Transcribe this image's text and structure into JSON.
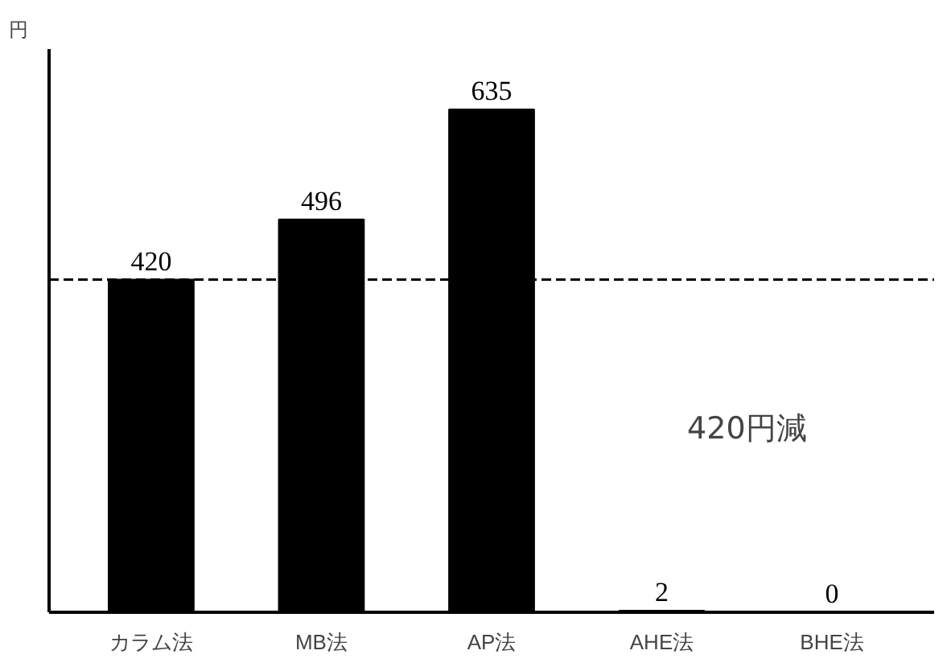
{
  "chart_data": {
    "type": "bar",
    "ylabel": "円",
    "categories": [
      "カラム法",
      "MB法",
      "AP法",
      "AHE法",
      "BHE法"
    ],
    "values": [
      420,
      496,
      635,
      2,
      0
    ],
    "color": "#000000",
    "data_labels": true,
    "ref_lines": [
      {
        "axis": "y",
        "value": 420,
        "line_style": "dashed",
        "color": "#000000"
      }
    ],
    "annotations": [
      "420円減"
    ],
    "grid": false
  }
}
